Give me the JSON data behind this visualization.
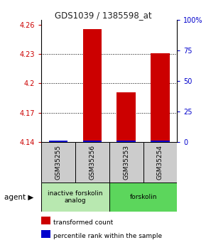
{
  "title": "GDS1039 / 1385598_at",
  "samples": [
    "GSM35255",
    "GSM35256",
    "GSM35253",
    "GSM35254"
  ],
  "red_values": [
    4.141,
    4.255,
    4.191,
    4.231
  ],
  "blue_values": [
    4.1415,
    4.1418,
    4.1416,
    4.1416
  ],
  "ymin": 4.14,
  "ymax": 4.265,
  "yticks_left": [
    4.14,
    4.17,
    4.2,
    4.23,
    4.26
  ],
  "yticks_right": [
    0,
    25,
    50,
    75,
    100
  ],
  "ytick_labels_left": [
    "4.14",
    "4.17",
    "4.2",
    "4.23",
    "4.26"
  ],
  "ytick_labels_right": [
    "0",
    "25",
    "50",
    "75",
    "100%"
  ],
  "groups": [
    {
      "label": "inactive forskolin\nanalog",
      "samples": [
        0,
        1
      ],
      "color": "#b8e8b0"
    },
    {
      "label": "forskolin",
      "samples": [
        2,
        3
      ],
      "color": "#5cd65c"
    }
  ],
  "bar_width": 0.55,
  "red_color": "#cc0000",
  "blue_color": "#0000cc",
  "title_color": "#222222",
  "left_tick_color": "#cc0000",
  "right_tick_color": "#0000cc",
  "legend_items": [
    {
      "color": "#cc0000",
      "label": "transformed count"
    },
    {
      "color": "#0000cc",
      "label": "percentile rank within the sample"
    }
  ],
  "sample_box_color": "#cccccc",
  "fig_width": 2.9,
  "fig_height": 3.45
}
